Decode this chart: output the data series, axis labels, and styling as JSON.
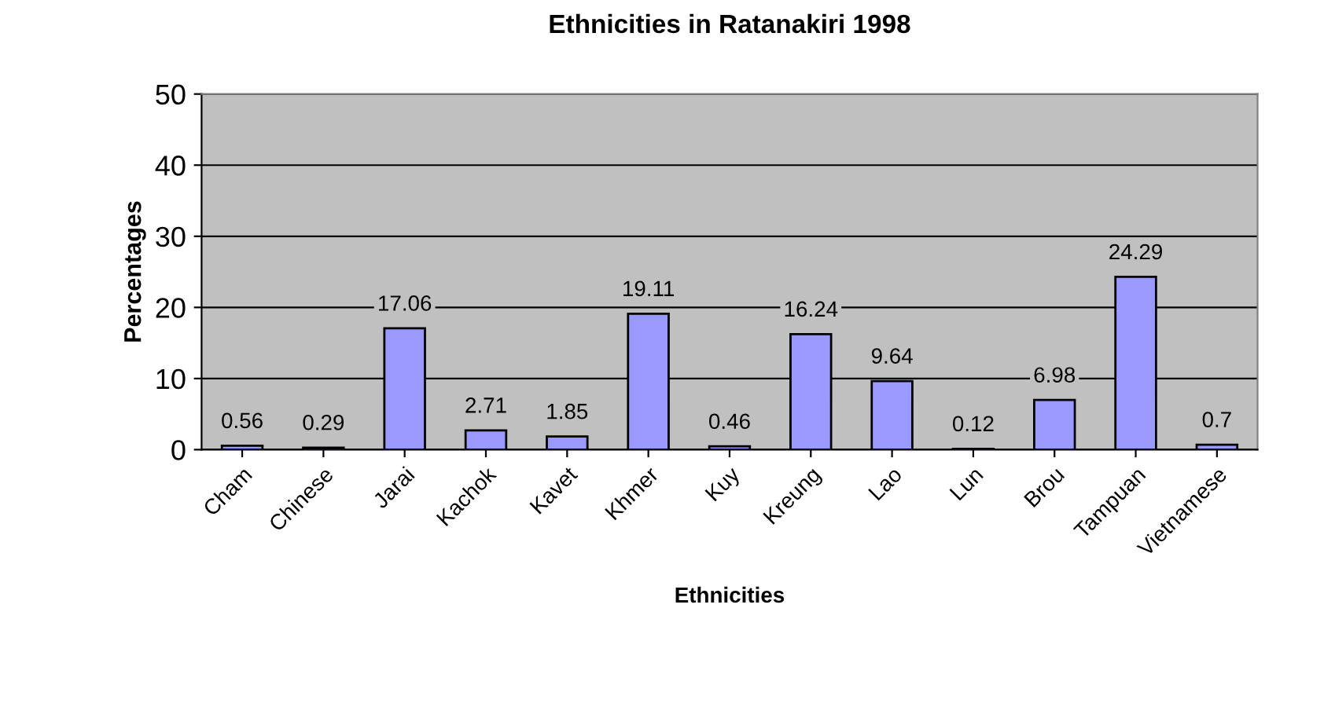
{
  "chart_data": {
    "type": "bar",
    "title": "Ethnicities in Ratanakiri 1998",
    "xlabel": "Ethnicities",
    "ylabel": "Percentages",
    "categories": [
      "Cham",
      "Chinese",
      "Jarai",
      "Kachok",
      "Kavet",
      "Khmer",
      "Kuy",
      "Kreung",
      "Lao",
      "Lun",
      "Brou",
      "Tampuan",
      "Vietnamese"
    ],
    "values": [
      0.56,
      0.29,
      17.06,
      2.71,
      1.85,
      19.11,
      0.46,
      16.24,
      9.64,
      0.12,
      6.98,
      24.29,
      0.7
    ],
    "color": "#9999ff",
    "ylim": [
      0,
      50
    ],
    "yticks": [
      0,
      10,
      20,
      30,
      40,
      50
    ],
    "grid": "y",
    "data_labels": true,
    "legend": false
  }
}
